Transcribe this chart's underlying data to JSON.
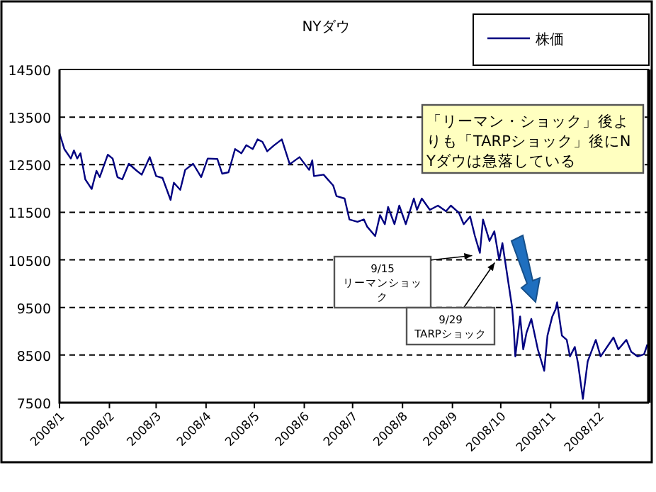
{
  "chart_data": {
    "type": "line",
    "title": "NYダウ",
    "x": [
      "2008-01-01",
      "2008-01-04",
      "2008-01-08",
      "2008-01-10",
      "2008-01-12",
      "2008-01-14",
      "2008-01-17",
      "2008-01-21",
      "2008-01-24",
      "2008-01-26",
      "2008-01-31",
      "2008-02-03",
      "2008-02-06",
      "2008-02-09",
      "2008-02-13",
      "2008-02-18",
      "2008-02-21",
      "2008-02-26",
      "2008-03-01",
      "2008-03-05",
      "2008-03-10",
      "2008-03-12",
      "2008-03-16",
      "2008-03-19",
      "2008-03-24",
      "2008-03-29",
      "2008-04-02",
      "2008-04-08",
      "2008-04-11",
      "2008-04-15",
      "2008-04-19",
      "2008-04-23",
      "2008-04-26",
      "2008-04-30",
      "2008-05-03",
      "2008-05-06",
      "2008-05-09",
      "2008-05-13",
      "2008-05-18",
      "2008-05-23",
      "2008-05-29",
      "2008-06-04",
      "2008-06-06",
      "2008-06-07",
      "2008-06-13",
      "2008-06-19",
      "2008-06-21",
      "2008-06-26",
      "2008-06-29",
      "2008-07-04",
      "2008-07-08",
      "2008-07-10",
      "2008-07-15",
      "2008-07-18",
      "2008-07-21",
      "2008-07-23",
      "2008-07-27",
      "2008-07-30",
      "2008-08-03",
      "2008-08-08",
      "2008-08-10",
      "2008-08-13",
      "2008-08-18",
      "2008-08-23",
      "2008-08-28",
      "2008-08-31",
      "2008-09-05",
      "2008-09-08",
      "2008-09-12",
      "2008-09-15",
      "2008-09-18",
      "2008-09-20",
      "2008-09-24",
      "2008-09-27",
      "2008-09-30",
      "2008-10-02",
      "2008-10-08",
      "2008-10-09",
      "2008-10-10",
      "2008-10-13",
      "2008-10-15",
      "2008-10-17",
      "2008-10-20",
      "2008-10-24",
      "2008-10-28",
      "2008-10-30",
      "2008-11-02",
      "2008-11-04",
      "2008-11-05",
      "2008-11-08",
      "2008-11-11",
      "2008-11-13",
      "2008-11-16",
      "2008-11-18",
      "2008-11-21",
      "2008-11-24",
      "2008-11-29",
      "2008-12-02",
      "2008-12-07",
      "2008-12-10",
      "2008-12-13",
      "2008-12-18",
      "2008-12-21",
      "2008-12-25",
      "2008-12-29",
      "2008-12-31"
    ],
    "series": [
      {
        "name": "株価",
        "color": "#000080",
        "values": [
          13160,
          12830,
          12630,
          12800,
          12630,
          12740,
          12190,
          11990,
          12370,
          12240,
          12710,
          12630,
          12240,
          12190,
          12520,
          12370,
          12290,
          12660,
          12260,
          12220,
          11760,
          12120,
          11970,
          12390,
          12520,
          12240,
          12630,
          12620,
          12310,
          12340,
          12830,
          12740,
          12910,
          12830,
          13030,
          12980,
          12780,
          12900,
          13030,
          12510,
          12660,
          12390,
          12590,
          12260,
          12290,
          12060,
          11840,
          11790,
          11350,
          11300,
          11350,
          11200,
          11000,
          11440,
          11250,
          11610,
          11250,
          11640,
          11250,
          11790,
          11550,
          11790,
          11550,
          11640,
          11520,
          11640,
          11490,
          11250,
          11410,
          11000,
          10650,
          11350,
          10900,
          11100,
          10500,
          10850,
          9510,
          9110,
          8470,
          9310,
          8620,
          8970,
          9260,
          8620,
          8170,
          8910,
          9310,
          9460,
          9610,
          8910,
          8820,
          8470,
          8670,
          8320,
          7580,
          8370,
          8820,
          8470,
          8720,
          8870,
          8620,
          8820,
          8570,
          8470,
          8520,
          8720
        ]
      }
    ],
    "xlim": [
      "2008-01-01",
      "2009-01-01"
    ],
    "xticks": [
      {
        "value": "2008-01-01",
        "label": "2008/1"
      },
      {
        "value": "2008-02-01",
        "label": "2008/2"
      },
      {
        "value": "2008-03-01",
        "label": "2008/3"
      },
      {
        "value": "2008-04-01",
        "label": "2008/4"
      },
      {
        "value": "2008-05-01",
        "label": "2008/5"
      },
      {
        "value": "2008-06-01",
        "label": "2008/6"
      },
      {
        "value": "2008-07-01",
        "label": "2008/7"
      },
      {
        "value": "2008-08-01",
        "label": "2008/8"
      },
      {
        "value": "2008-09-01",
        "label": "2008/9"
      },
      {
        "value": "2008-10-01",
        "label": "2008/10"
      },
      {
        "value": "2008-11-01",
        "label": "2008/11"
      },
      {
        "value": "2008-12-01",
        "label": "2008/12"
      }
    ],
    "ylim": [
      7500,
      14500
    ],
    "yticks": [
      7500,
      8500,
      9500,
      10500,
      11500,
      12500,
      13500,
      14500
    ],
    "grid": "y",
    "legend": "top right",
    "line_style": "solid",
    "marker": "none",
    "annotations": [
      "「リーマン・ショック」後よりも「TARPショック」後にNYダウは急落している",
      {
        "text": "9/15\nリーマンショック",
        "x": "2008-09-15",
        "y": 10650
      },
      {
        "text": "9/29\nTARPショック",
        "x": "2008-09-29",
        "y": 10500
      }
    ]
  }
}
